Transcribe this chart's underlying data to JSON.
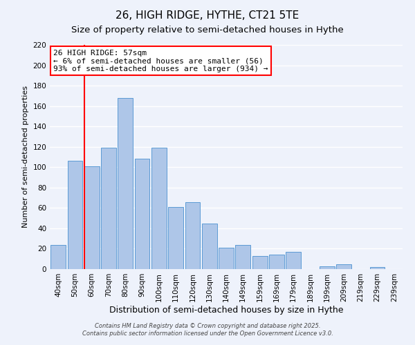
{
  "title": "26, HIGH RIDGE, HYTHE, CT21 5TE",
  "subtitle": "Size of property relative to semi-detached houses in Hythe",
  "xlabel": "Distribution of semi-detached houses by size in Hythe",
  "ylabel": "Number of semi-detached properties",
  "bar_labels": [
    "40sqm",
    "50sqm",
    "60sqm",
    "70sqm",
    "80sqm",
    "90sqm",
    "100sqm",
    "110sqm",
    "120sqm",
    "130sqm",
    "140sqm",
    "149sqm",
    "159sqm",
    "169sqm",
    "179sqm",
    "189sqm",
    "199sqm",
    "209sqm",
    "219sqm",
    "229sqm",
    "239sqm"
  ],
  "bar_values": [
    24,
    106,
    101,
    119,
    168,
    108,
    119,
    61,
    66,
    45,
    21,
    24,
    13,
    14,
    17,
    0,
    3,
    5,
    0,
    2,
    0
  ],
  "bar_color": "#aec6e8",
  "bar_edge_color": "#5b9bd5",
  "property_line_color": "red",
  "ylim": [
    0,
    220
  ],
  "yticks": [
    0,
    20,
    40,
    60,
    80,
    100,
    120,
    140,
    160,
    180,
    200,
    220
  ],
  "annotation_title": "26 HIGH RIDGE: 57sqm",
  "annotation_line1": "← 6% of semi-detached houses are smaller (56)",
  "annotation_line2": "93% of semi-detached houses are larger (934) →",
  "annotation_box_color": "#ffffff",
  "annotation_box_edge": "red",
  "footnote1": "Contains HM Land Registry data © Crown copyright and database right 2025.",
  "footnote2": "Contains public sector information licensed under the Open Government Licence v3.0.",
  "background_color": "#eef2fb",
  "grid_color": "#ffffff",
  "title_fontsize": 11,
  "subtitle_fontsize": 9.5,
  "xlabel_fontsize": 9,
  "ylabel_fontsize": 8,
  "tick_fontsize": 7.5,
  "annotation_fontsize": 8,
  "footnote_fontsize": 6
}
